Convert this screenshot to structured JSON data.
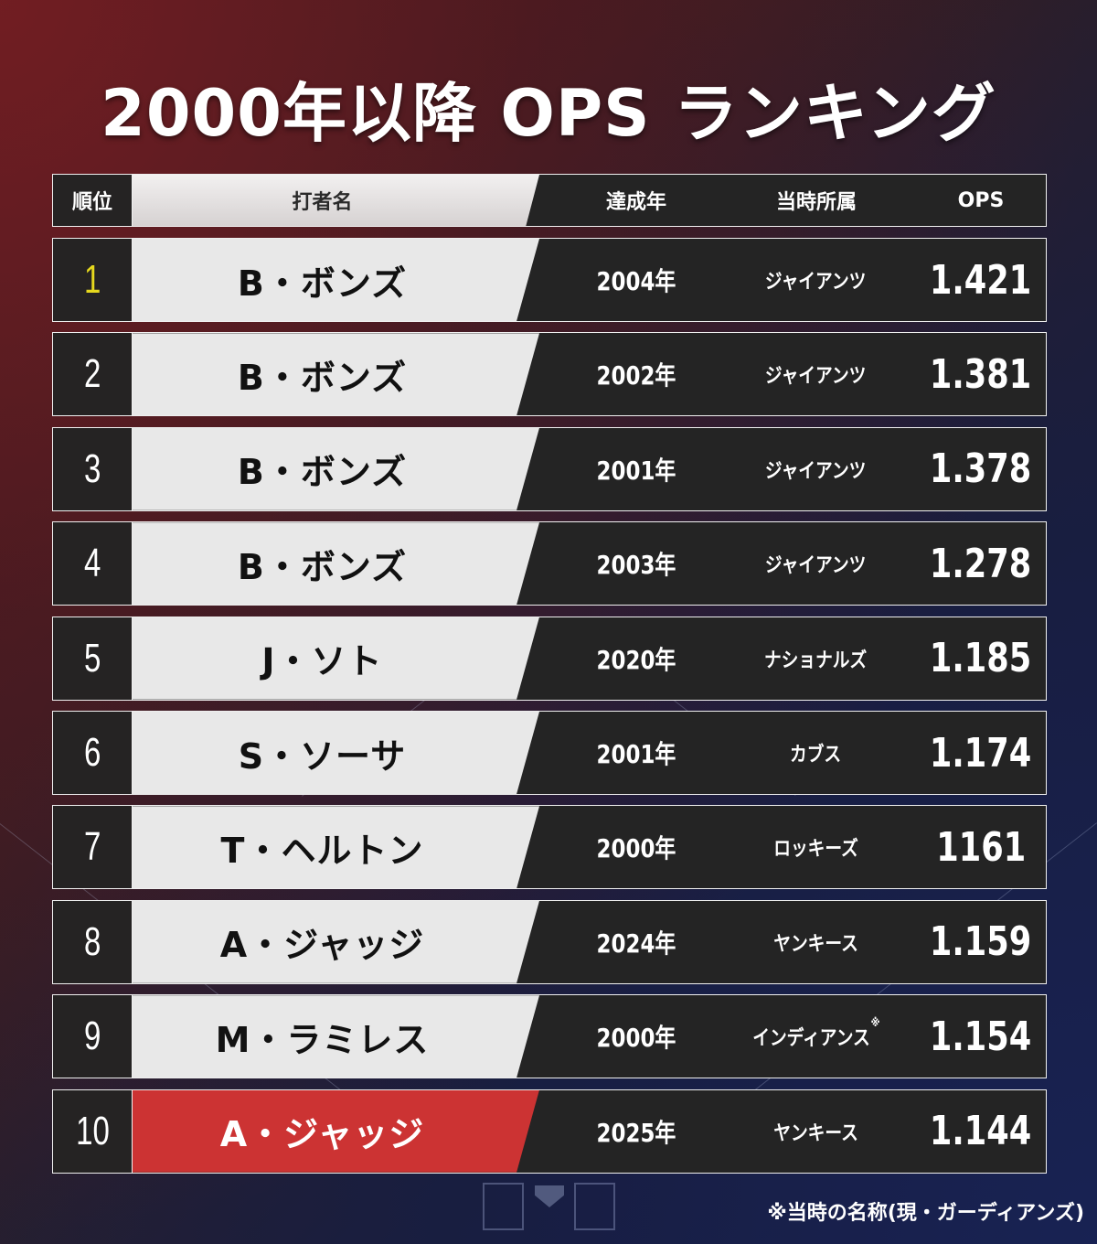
{
  "title": "2000年以降 OPS ランキング",
  "header": {
    "rank": "順位",
    "name": "打者名",
    "year": "達成年",
    "team": "当時所属",
    "ops": "OPS"
  },
  "colors": {
    "rank1_text": "#e6d81e",
    "highlight_bg": "#cc3333",
    "name_bg": "#e8e8e8",
    "dark_cell": "#242424"
  },
  "rows": [
    {
      "rank": "1",
      "name": "B・ボンズ",
      "year": "2004年",
      "team": "ジャイアンツ",
      "team_note": "",
      "ops": "1.421"
    },
    {
      "rank": "2",
      "name": "B・ボンズ",
      "year": "2002年",
      "team": "ジャイアンツ",
      "team_note": "",
      "ops": "1.381"
    },
    {
      "rank": "3",
      "name": "B・ボンズ",
      "year": "2001年",
      "team": "ジャイアンツ",
      "team_note": "",
      "ops": "1.378"
    },
    {
      "rank": "4",
      "name": "B・ボンズ",
      "year": "2003年",
      "team": "ジャイアンツ",
      "team_note": "",
      "ops": "1.278"
    },
    {
      "rank": "5",
      "name": "J・ソト",
      "year": "2020年",
      "team": "ナショナルズ",
      "team_note": "",
      "ops": "1.185"
    },
    {
      "rank": "6",
      "name": "S・ソーサ",
      "year": "2001年",
      "team": "カブス",
      "team_note": "",
      "ops": "1.174"
    },
    {
      "rank": "7",
      "name": "T・ヘルトン",
      "year": "2000年",
      "team": "ロッキーズ",
      "team_note": "",
      "ops": "1161"
    },
    {
      "rank": "8",
      "name": "A・ジャッジ",
      "year": "2024年",
      "team": "ヤンキース",
      "team_note": "",
      "ops": "1.159"
    },
    {
      "rank": "9",
      "name": "M・ラミレス",
      "year": "2000年",
      "team": "インディアンス",
      "team_note": "※",
      "ops": "1.154"
    },
    {
      "rank": "10",
      "name": "A・ジャッジ",
      "year": "2025年",
      "team": "ヤンキース",
      "team_note": "",
      "ops": "1.144"
    }
  ],
  "footnote": "※当時の名称(現・ガーディアンズ)",
  "chart_data": {
    "type": "table",
    "title": "2000年以降 OPS ランキング",
    "columns": [
      "順位",
      "打者名",
      "達成年",
      "当時所属",
      "OPS"
    ],
    "rows": [
      [
        "1",
        "B・ボンズ",
        "2004年",
        "ジャイアンツ",
        "1.421"
      ],
      [
        "2",
        "B・ボンズ",
        "2002年",
        "ジャイアンツ",
        "1.381"
      ],
      [
        "3",
        "B・ボンズ",
        "2001年",
        "ジャイアンツ",
        "1.378"
      ],
      [
        "4",
        "B・ボンズ",
        "2003年",
        "ジャイアンツ",
        "1.278"
      ],
      [
        "5",
        "J・ソト",
        "2020年",
        "ナショナルズ",
        "1.185"
      ],
      [
        "6",
        "S・ソーサ",
        "2001年",
        "カブス",
        "1.174"
      ],
      [
        "7",
        "T・ヘルトン",
        "2000年",
        "ロッキーズ",
        "1161"
      ],
      [
        "8",
        "A・ジャッジ",
        "2024年",
        "ヤンキース",
        "1.159"
      ],
      [
        "9",
        "M・ラミレス",
        "2000年",
        "インディアンス※",
        "1.154"
      ],
      [
        "10",
        "A・ジャッジ",
        "2025年",
        "ヤンキース",
        "1.144"
      ]
    ],
    "highlighted_row": 10,
    "annotations": [
      "※当時の名称(現・ガーディアンズ)"
    ]
  }
}
